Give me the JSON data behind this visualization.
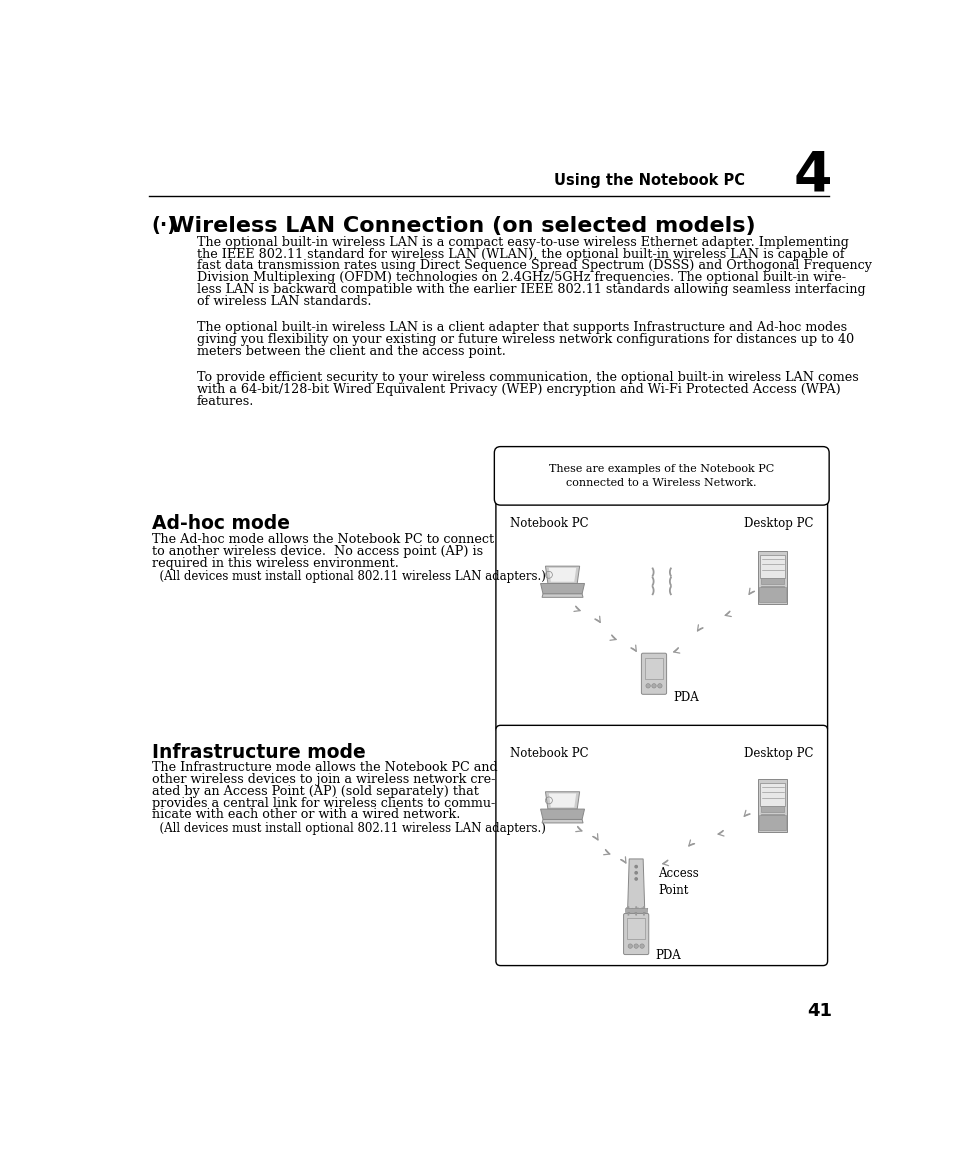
{
  "bg_color": "#ffffff",
  "header_text": "Using the Notebook PC",
  "chapter_num": "4",
  "page_num": "41",
  "title_symbol": "(·)",
  "title_main": "Wireless LAN Connection (on selected models)",
  "para1_line1": "The optional built-in wireless LAN is a compact easy-to-use wireless Ethernet adapter. Implementing",
  "para1_line2": "the IEEE 802.11 standard for wireless LAN (WLAN), the optional built-in wireless LAN is capable of",
  "para1_line3": "fast data transmission rates using Direct Sequence Spread Spectrum (DSSS) and Orthogonal Frequency",
  "para1_line4": "Division Multiplexing (OFDM) technologies on 2.4GHz/5GHz frequencies. The optional built-in wire-",
  "para1_line5": "less LAN is backward compatible with the earlier IEEE 802.11 standards allowing seamless interfacing",
  "para1_line6": "of wireless LAN standards.",
  "para2_line1": "The optional built-in wireless LAN is a client adapter that supports Infrastructure and Ad-hoc modes",
  "para2_line2": "giving you flexibility on your existing or future wireless network configurations for distances up to 40",
  "para2_line3": "meters between the client and the access point.",
  "para3_line1": "To provide efficient security to your wireless communication, the optional built-in wireless LAN comes",
  "para3_line2": "with a 64-bit/128-bit Wired Equivalent Privacy (WEP) encryption and Wi-Fi Protected Access (WPA)",
  "para3_line3": "features.",
  "section1_title": "Ad-hoc mode",
  "section1_body_line1": "The Ad-hoc mode allows the Notebook PC to connect",
  "section1_body_line2": "to another wireless device.  No access point (AP) is",
  "section1_body_line3": "required in this wireless environment.",
  "section1_note": "  (All devices must install optional 802.11 wireless LAN adapters.)",
  "section2_title": "Infrastructure mode",
  "section2_body_line1": "The Infrastructure mode allows the Notebook PC and",
  "section2_body_line2": "other wireless devices to join a wireless network cre-",
  "section2_body_line3": "ated by an Access Point (AP) (sold separately) that",
  "section2_body_line4": "provides a central link for wireless clients to commu-",
  "section2_body_line5": "nicate with each other or with a wired network.",
  "section2_note": "  (All devices must install optional 802.11 wireless LAN adapters.)",
  "callout_text_line1": "These are examples of the Notebook PC",
  "callout_text_line2": "connected to a Wireless Network.",
  "label_notebook": "Notebook PC",
  "label_desktop": "Desktop PC",
  "label_pda": "PDA",
  "label_ap_line1": "Access",
  "label_ap_line2": "Point",
  "device_gray": "#cccccc",
  "device_dark": "#888888",
  "device_mid": "#aaaaaa",
  "signal_gray": "#999999"
}
